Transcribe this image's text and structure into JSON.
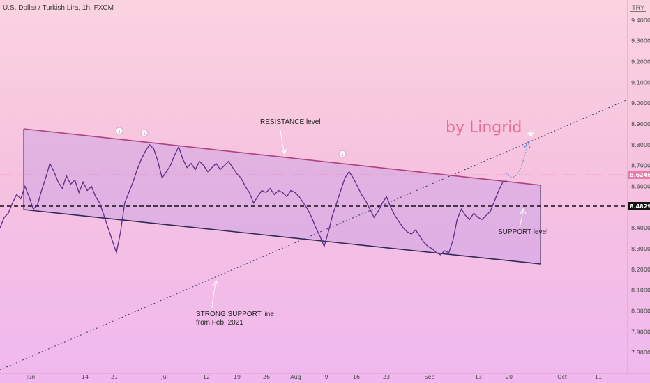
{
  "header": {
    "symbol": "U.S. Dollar / Turkish Lira, 1h, FXCM",
    "currency": "TRY"
  },
  "annotations": {
    "resistance": "RESISTANCE level",
    "support": "SUPPORT level",
    "strong_support_line1": "STRONG SUPPORT line",
    "strong_support_line2": "from Feb. 2021",
    "brand": "by Lingrid"
  },
  "price_tags": {
    "current": "8.62465",
    "support": "8.48291"
  },
  "chart_data": {
    "type": "line",
    "title": "U.S. Dollar / Turkish Lira, 1h, FXCM",
    "xlabel": "",
    "ylabel": "",
    "ylim": [
      7.75,
      9.48
    ],
    "y_ticks": [
      "9.40000",
      "9.30000",
      "9.20000",
      "9.10000",
      "9.00000",
      "8.90000",
      "8.80000",
      "8.70000",
      "8.60000",
      "8.50000",
      "8.40000",
      "8.30000",
      "8.20000",
      "8.10000",
      "8.00000",
      "7.90000",
      "7.80000"
    ],
    "x_ticks": [
      "Jun",
      "14",
      "21",
      "Jul",
      "12",
      "19",
      "26",
      "Aug",
      "9",
      "16",
      "23",
      "Sep",
      "13",
      "20",
      "Oct",
      "11"
    ],
    "series": [
      {
        "values": [
          8.4,
          8.45,
          8.47,
          8.52,
          8.56,
          8.54,
          8.6,
          8.55,
          8.49,
          8.51,
          8.58,
          8.64,
          8.71,
          8.67,
          8.62,
          8.59,
          8.65,
          8.61,
          8.63,
          8.57,
          8.62,
          8.58,
          8.6,
          8.55,
          8.52,
          8.46,
          8.4,
          8.34,
          8.28,
          8.38,
          8.52,
          8.57,
          8.62,
          8.68,
          8.73,
          8.77,
          8.8,
          8.78,
          8.72,
          8.64,
          8.67,
          8.7,
          8.75,
          8.79,
          8.73,
          8.69,
          8.71,
          8.68,
          8.72,
          8.7,
          8.67,
          8.69,
          8.71,
          8.68,
          8.7,
          8.72,
          8.69,
          8.66,
          8.64,
          8.6,
          8.57,
          8.52,
          8.55,
          8.58,
          8.57,
          8.59,
          8.56,
          8.58,
          8.57,
          8.55,
          8.58,
          8.57,
          8.55,
          8.52,
          8.49,
          8.45,
          8.4,
          8.36,
          8.31,
          8.38,
          8.46,
          8.52,
          8.58,
          8.64,
          8.67,
          8.64,
          8.6,
          8.56,
          8.53,
          8.49,
          8.45,
          8.48,
          8.52,
          8.55,
          8.5,
          8.46,
          8.43,
          8.4,
          8.38,
          8.37,
          8.39,
          8.36,
          8.33,
          8.31,
          8.3,
          8.28,
          8.27,
          8.29,
          8.28,
          8.34,
          8.44,
          8.49,
          8.46,
          8.44,
          8.47,
          8.45,
          8.44,
          8.46,
          8.48,
          8.53,
          8.58,
          8.62,
          8.625
        ]
      }
    ],
    "levels": {
      "current_price": 8.62465,
      "support_price": 8.48291
    },
    "grid": false,
    "legend": "none"
  }
}
